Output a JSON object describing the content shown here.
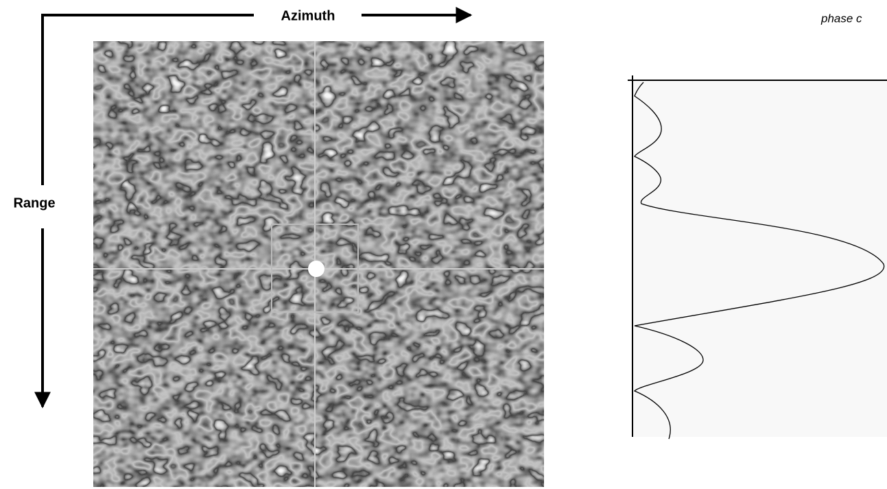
{
  "figure": {
    "azimuth_label": "Azimuth",
    "range_label": "Range",
    "corner_caption": "phase c"
  }
}
